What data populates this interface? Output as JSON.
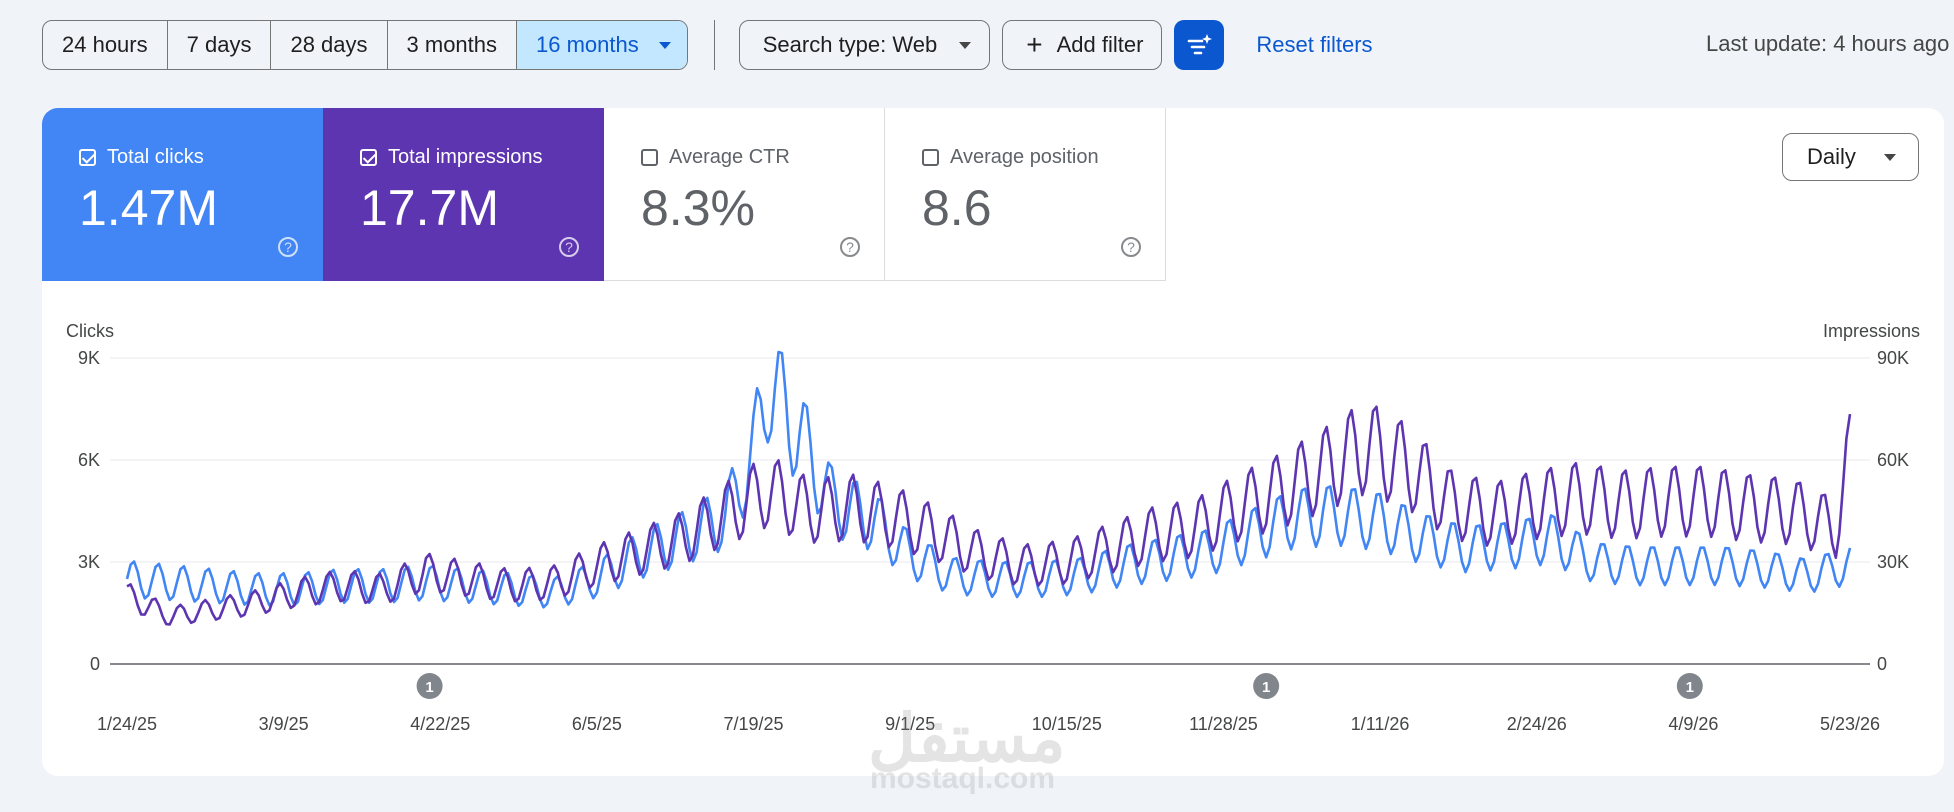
{
  "toolbar": {
    "ranges": [
      "24 hours",
      "7 days",
      "28 days",
      "3 months",
      "16 months"
    ],
    "search_type": "Search type: Web",
    "add_filter": "Add filter",
    "reset": "Reset filters",
    "last_update": "Last update: 4 hours ago"
  },
  "metrics": [
    {
      "label": "Total clicks",
      "value": "1.47M",
      "checked": true
    },
    {
      "label": "Total impressions",
      "value": "17.7M",
      "checked": true
    },
    {
      "label": "Average CTR",
      "value": "8.3%",
      "checked": false
    },
    {
      "label": "Average position",
      "value": "8.6",
      "checked": false
    }
  ],
  "granularity": "Daily",
  "colors": {
    "clicks": "#4285f4",
    "impressions": "#5e35b1",
    "accent": "#0b57d0"
  },
  "watermark": {
    "text": "مستقل",
    "sub": "mostaql.com"
  },
  "chart_data": {
    "type": "line",
    "left_axis": {
      "label": "Clicks",
      "ticks": [
        "0",
        "3K",
        "6K",
        "9K"
      ],
      "range": [
        0,
        9000
      ]
    },
    "right_axis": {
      "label": "Impressions",
      "ticks": [
        "0",
        "30K",
        "60K",
        "90K"
      ],
      "range": [
        0,
        90000
      ]
    },
    "x_labels": [
      "1/24/25",
      "3/9/25",
      "4/22/25",
      "6/5/25",
      "7/19/25",
      "9/1/25",
      "10/15/25",
      "11/28/25",
      "1/11/26",
      "2/24/26",
      "4/9/26",
      "5/23/26"
    ],
    "annotations": [
      {
        "date": "4/19/25",
        "label": "1"
      },
      {
        "date": "12/10/25",
        "label": "1"
      },
      {
        "date": "4/8/26",
        "label": "1"
      }
    ],
    "grid": true,
    "series": [
      {
        "name": "Clicks",
        "axis": "left",
        "points": [
          [
            "1/24/25",
            2500
          ],
          [
            "2/5/25",
            2400
          ],
          [
            "2/17/25",
            2300
          ],
          [
            "3/1/25",
            2200
          ],
          [
            "3/13/25",
            2200
          ],
          [
            "3/25/25",
            2300
          ],
          [
            "4/6/25",
            2300
          ],
          [
            "4/18/25",
            2400
          ],
          [
            "4/30/25",
            2300
          ],
          [
            "5/12/25",
            2200
          ],
          [
            "5/24/25",
            2100
          ],
          [
            "6/5/25",
            2500
          ],
          [
            "6/17/25",
            3200
          ],
          [
            "6/29/25",
            3700
          ],
          [
            "7/11/25",
            4300
          ],
          [
            "7/19/25",
            6200
          ],
          [
            "7/23/25",
            8300
          ],
          [
            "8/1/25",
            6700
          ],
          [
            "8/10/25",
            4800
          ],
          [
            "8/22/25",
            4200
          ],
          [
            "9/1/25",
            3200
          ],
          [
            "9/13/25",
            2600
          ],
          [
            "9/25/25",
            2500
          ],
          [
            "10/7/25",
            2500
          ],
          [
            "10/19/25",
            2600
          ],
          [
            "10/31/25",
            2900
          ],
          [
            "11/12/25",
            3100
          ],
          [
            "11/24/25",
            3300
          ],
          [
            "12/6/25",
            3800
          ],
          [
            "12/18/25",
            4300
          ],
          [
            "12/30/25",
            4400
          ],
          [
            "1/11/26",
            4200
          ],
          [
            "1/23/26",
            3700
          ],
          [
            "2/4/26",
            3400
          ],
          [
            "2/16/26",
            3500
          ],
          [
            "2/28/26",
            3700
          ],
          [
            "3/12/26",
            3000
          ],
          [
            "3/24/26",
            2900
          ],
          [
            "4/5/26",
            2900
          ],
          [
            "4/17/26",
            2900
          ],
          [
            "4/29/26",
            2800
          ],
          [
            "5/11/26",
            2600
          ],
          [
            "5/23/26",
            2900
          ]
        ]
      },
      {
        "name": "Impressions",
        "axis": "right",
        "points": [
          [
            "1/24/25",
            20000
          ],
          [
            "2/5/25",
            14000
          ],
          [
            "2/17/25",
            16000
          ],
          [
            "3/1/25",
            18000
          ],
          [
            "3/13/25",
            21000
          ],
          [
            "3/25/25",
            23000
          ],
          [
            "4/6/25",
            22000
          ],
          [
            "4/18/25",
            27000
          ],
          [
            "4/30/25",
            25000
          ],
          [
            "5/12/25",
            23000
          ],
          [
            "5/24/25",
            24000
          ],
          [
            "6/5/25",
            29000
          ],
          [
            "6/17/25",
            33000
          ],
          [
            "6/29/25",
            37000
          ],
          [
            "7/11/25",
            44000
          ],
          [
            "7/23/25",
            51000
          ],
          [
            "8/4/25",
            45000
          ],
          [
            "8/16/25",
            46000
          ],
          [
            "8/28/25",
            43000
          ],
          [
            "9/9/25",
            38000
          ],
          [
            "9/21/25",
            32000
          ],
          [
            "10/3/25",
            29000
          ],
          [
            "10/15/25",
            30000
          ],
          [
            "10/27/25",
            34000
          ],
          [
            "11/8/25",
            38000
          ],
          [
            "11/20/25",
            40000
          ],
          [
            "12/2/25",
            46000
          ],
          [
            "12/14/25",
            51000
          ],
          [
            "12/26/25",
            57000
          ],
          [
            "1/7/26",
            64000
          ],
          [
            "1/19/26",
            58000
          ],
          [
            "1/31/26",
            47000
          ],
          [
            "2/12/26",
            44000
          ],
          [
            "2/24/26",
            47000
          ],
          [
            "3/8/26",
            49000
          ],
          [
            "3/20/26",
            47000
          ],
          [
            "4/1/26",
            48000
          ],
          [
            "4/13/26",
            48000
          ],
          [
            "4/25/26",
            46000
          ],
          [
            "5/7/26",
            45000
          ],
          [
            "5/19/26",
            40000
          ],
          [
            "5/23/26",
            61000
          ]
        ]
      }
    ]
  }
}
